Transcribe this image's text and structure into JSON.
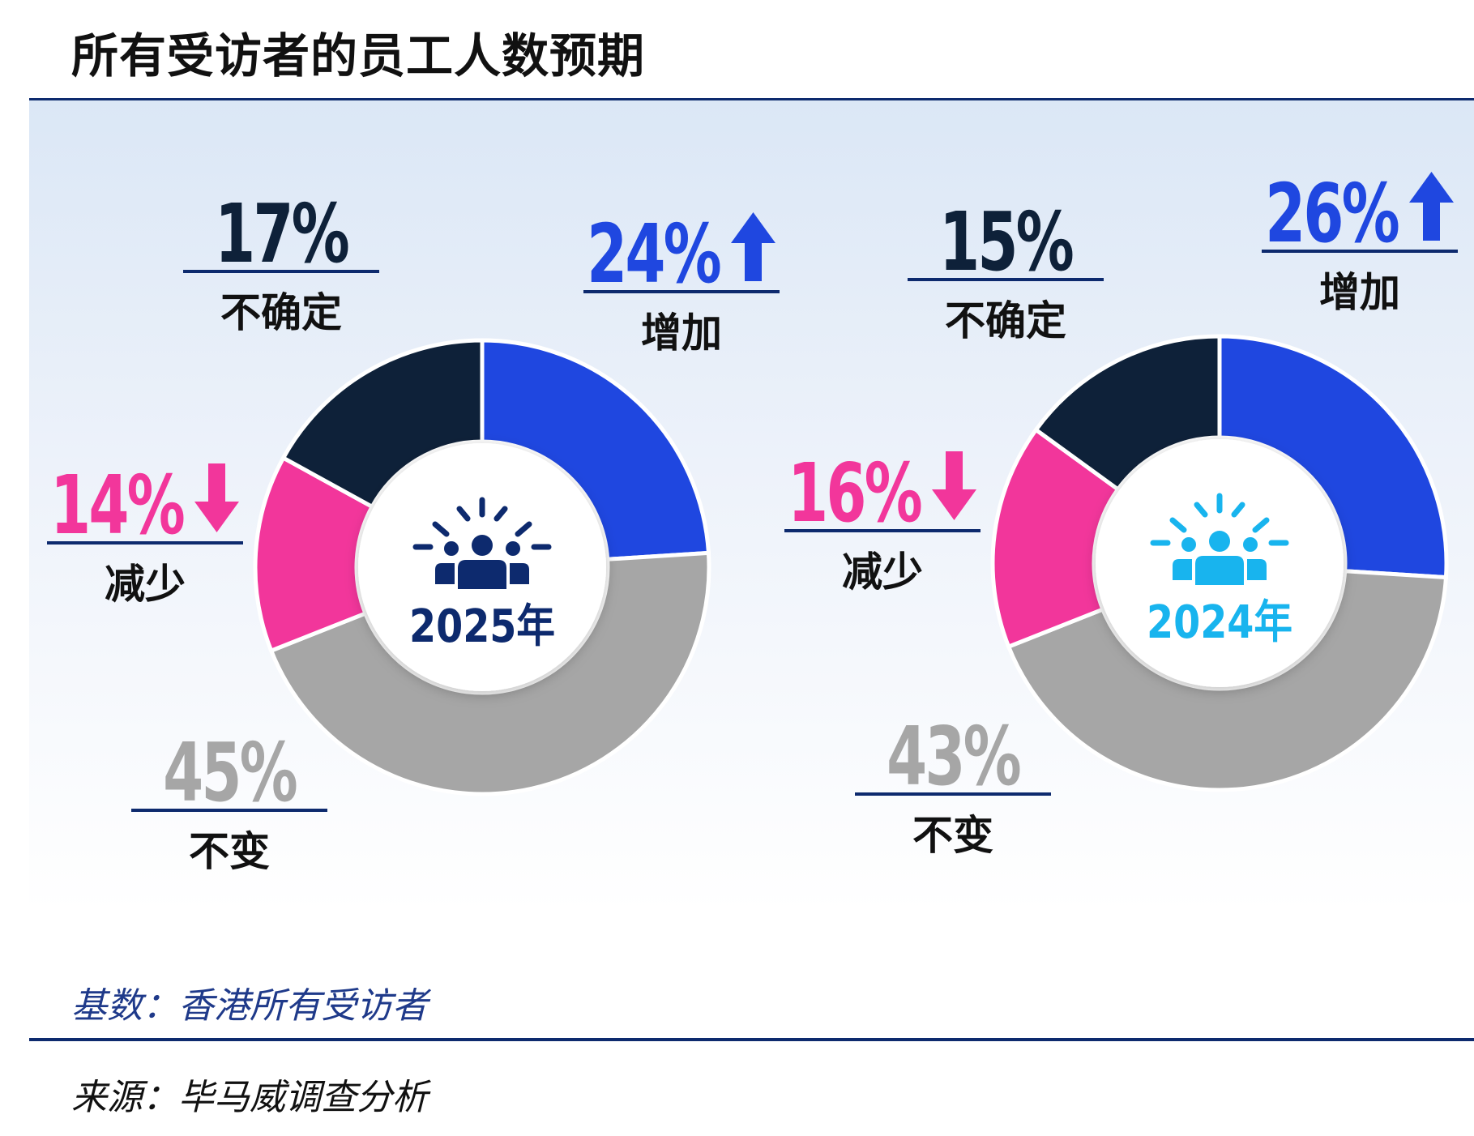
{
  "title": "所有受访者的员工人数预期",
  "footer": {
    "base_note": "基数：香港所有受访者",
    "source_note": "来源：毕马威调查分析"
  },
  "colors": {
    "increase": "#1f47e0",
    "unchanged": "#a6a6a6",
    "decrease": "#f2369b",
    "uncertain": "#0e2139",
    "rule": "#0d2a6e",
    "year_2025": "#0d2a6e",
    "year_2024": "#18b4ee"
  },
  "chart_data": [
    {
      "type": "pie",
      "donut": true,
      "center_label": "2025年",
      "center_icon": "people-celebration-icon",
      "categories": [
        "增加",
        "不变",
        "减少",
        "不确定"
      ],
      "values": [
        24,
        45,
        14,
        17
      ],
      "value_labels": [
        "24%",
        "45%",
        "14%",
        "17%"
      ],
      "trend_icons": [
        "arrow-up-icon",
        "",
        "arrow-down-icon",
        ""
      ]
    },
    {
      "type": "pie",
      "donut": true,
      "center_label": "2024年",
      "center_icon": "people-celebration-icon",
      "categories": [
        "增加",
        "不变",
        "减少",
        "不确定"
      ],
      "values": [
        26,
        43,
        16,
        15
      ],
      "value_labels": [
        "26%",
        "43%",
        "16%",
        "15%"
      ],
      "trend_icons": [
        "arrow-up-icon",
        "",
        "arrow-down-icon",
        ""
      ]
    }
  ]
}
